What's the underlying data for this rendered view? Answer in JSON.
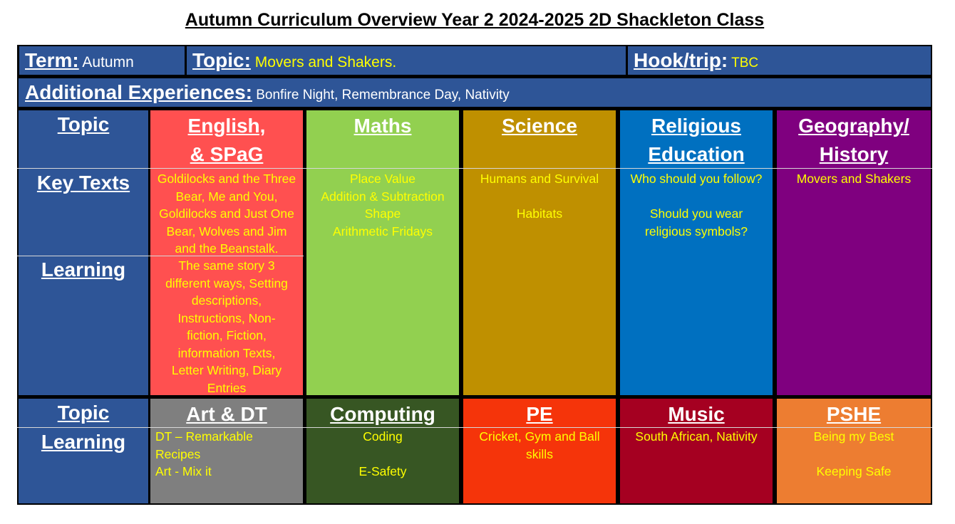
{
  "title": "Autumn Curriculum Overview Year 2 2024-2025 2D Shackleton Class",
  "top_bar": {
    "term_label": "Term:",
    "term_value": " Autumn",
    "topic_label": "Topic:",
    "topic_value": "  Movers and Shakers.",
    "hook_label": "Hook/trip",
    "hook_colon": ":",
    "hook_value": " TBC"
  },
  "additional": {
    "label": "Additional Experiences:",
    "value": " Bonfire Night, Remembrance Day, Nativity"
  },
  "upper_section": {
    "row_labels": {
      "topic": "Topic",
      "key_texts": "Key Texts",
      "learning": "Learning"
    },
    "subjects": [
      {
        "heading_1": "English,",
        "heading_2": "& SPaG",
        "color": "#ff5050",
        "key_texts": "Goldilocks and the Three\nBear, Me and You,\nGoldilocks and Just One\nBear, Wolves and Jim\nand the Beanstalk.",
        "learning": "The same story 3\ndifferent ways, Setting\ndescriptions,\nInstructions, Non-\nfiction, Fiction,\ninformation Texts,\nLetter Writing, Diary\nEntries"
      },
      {
        "heading_1": "Maths",
        "heading_2": "",
        "color": "#92d050",
        "key_texts": "Place Value\nAddition & Subtraction\nShape\nArithmetic Fridays",
        "learning": ""
      },
      {
        "heading_1": "Science",
        "heading_2": "",
        "color": "#bf9000",
        "key_texts": "Humans and Survival\n\nHabitats",
        "learning": ""
      },
      {
        "heading_1": "Religious",
        "heading_2": "Education",
        "color": "#0070c0",
        "key_texts": "Who should you follow?\n\nShould you wear\nreligious symbols?",
        "learning": ""
      },
      {
        "heading_1": "Geography/",
        "heading_2": "History",
        "color": "#7f007f",
        "key_texts": "Movers and Shakers",
        "learning": ""
      }
    ]
  },
  "lower_section": {
    "row_labels": {
      "topic": "Topic",
      "learning": "Learning"
    },
    "subjects": [
      {
        "heading": "Art & DT",
        "color": "#7f7f7f",
        "learning": "DT – Remarkable\nRecipes\nArt - Mix it"
      },
      {
        "heading": "Computing",
        "color": "#375623",
        "learning": "Coding\n\nE-Safety"
      },
      {
        "heading": "PE",
        "color": "#f5340a",
        "learning": "Cricket, Gym and Ball\nskills"
      },
      {
        "heading": "Music",
        "color": "#a50021",
        "learning": "South African, Nativity"
      },
      {
        "heading": "PSHE",
        "color": "#ed7d31",
        "learning": "Being my Best\n\nKeeping Safe"
      }
    ]
  },
  "colors": {
    "bar_blue": "#2e5597",
    "label_yellow": "#ffff00"
  }
}
